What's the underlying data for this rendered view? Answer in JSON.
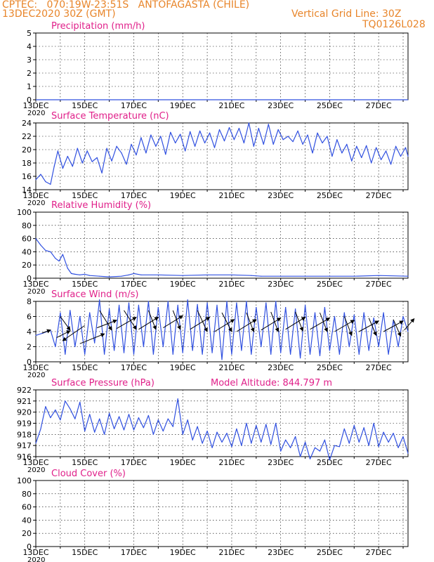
{
  "header": {
    "line1_left": "CPTEC:   070:19W-23:51S   ANTOFAGASTA (CHILE)",
    "line2_left": "13DEC2020 30Z (GMT)",
    "line1_right": "Vertical Grid Line: 30Z",
    "line2_right": "TQ0126L028",
    "accent_color": "#e8852a"
  },
  "chart_data": [
    {
      "type": "line",
      "title": "Precipitation (mm/h)",
      "ylim": [
        0,
        5
      ],
      "yticks": [
        "0",
        "1",
        "2",
        "3",
        "4",
        "5"
      ],
      "xticks": [
        "13DEC",
        "15DEC",
        "17DEC",
        "19DEC",
        "21DEC",
        "23DEC",
        "25DEC",
        "27DEC"
      ],
      "x_year_label": "2020",
      "series": [
        {
          "x": [
            13,
            28.2
          ],
          "values": [
            0,
            0
          ],
          "color": "#3050e0"
        }
      ]
    },
    {
      "type": "line",
      "title": "Surface Temperature (nC)",
      "ylim": [
        14,
        24
      ],
      "yticks": [
        "14",
        "16",
        "18",
        "20",
        "22",
        "24"
      ],
      "xticks": [
        "13DEC",
        "15DEC",
        "17DEC",
        "19DEC",
        "21DEC",
        "23DEC",
        "25DEC",
        "27DEC"
      ],
      "x_year_label": "2020",
      "series": [
        {
          "color": "#3050e0",
          "x": [
            13.0,
            13.2,
            13.4,
            13.6,
            13.75,
            13.9,
            14.1,
            14.3,
            14.5,
            14.7,
            14.9,
            15.1,
            15.3,
            15.5,
            15.7,
            15.9,
            16.1,
            16.3,
            16.5,
            16.7,
            16.9,
            17.1,
            17.3,
            17.5,
            17.7,
            17.9,
            18.1,
            18.3,
            18.5,
            18.7,
            18.9,
            19.1,
            19.3,
            19.5,
            19.7,
            19.9,
            20.1,
            20.3,
            20.5,
            20.7,
            20.9,
            21.1,
            21.3,
            21.5,
            21.7,
            21.9,
            22.1,
            22.3,
            22.5,
            22.7,
            22.9,
            23.1,
            23.3,
            23.5,
            23.7,
            23.9,
            24.1,
            24.3,
            24.5,
            24.7,
            24.9,
            25.1,
            25.3,
            25.5,
            25.7,
            25.9,
            26.1,
            26.3,
            26.5,
            26.7,
            26.9,
            27.1,
            27.3,
            27.5,
            27.7,
            27.9,
            28.1,
            28.2
          ],
          "values": [
            15.5,
            16.3,
            15.2,
            14.8,
            17.5,
            19.8,
            17.2,
            19.0,
            17.5,
            20.2,
            18.0,
            19.8,
            18.2,
            18.8,
            16.5,
            20.2,
            18.3,
            20.5,
            19.5,
            17.8,
            20.8,
            19.2,
            21.8,
            19.5,
            22.2,
            20.5,
            22.0,
            19.3,
            22.6,
            21.0,
            22.3,
            19.8,
            22.7,
            20.5,
            22.8,
            21.0,
            22.5,
            20.3,
            23.0,
            21.3,
            23.3,
            21.5,
            23.2,
            21.0,
            24.0,
            20.5,
            23.2,
            20.8,
            23.8,
            20.8,
            23.0,
            21.5,
            22.0,
            21.2,
            22.8,
            20.8,
            22.2,
            19.5,
            22.5,
            21.0,
            22.0,
            19.0,
            21.5,
            19.5,
            20.8,
            18.3,
            20.5,
            18.8,
            20.6,
            18.0,
            20.3,
            18.5,
            19.8,
            17.8,
            20.5,
            19.0,
            20.3,
            19.0
          ]
        }
      ]
    },
    {
      "type": "area",
      "title": "Relative Humidity (%)",
      "ylim": [
        0,
        100
      ],
      "yticks": [
        "0",
        "20",
        "40",
        "60",
        "80",
        "100"
      ],
      "xticks": [
        "13DEC",
        "15DEC",
        "17DEC",
        "19DEC",
        "21DEC",
        "23DEC",
        "25DEC",
        "27DEC"
      ],
      "x_year_label": "2020",
      "series": [
        {
          "color": "#3050e0",
          "x": [
            13.0,
            13.2,
            13.4,
            13.6,
            13.8,
            13.95,
            14.1,
            14.3,
            14.45,
            14.6,
            14.8,
            15.0,
            15.2,
            15.6,
            16.0,
            16.5,
            16.8,
            17.0,
            17.3,
            18.0,
            19.0,
            20.0,
            21.0,
            21.8,
            22.2,
            23.0,
            24.0,
            25.0,
            26.0,
            27.0,
            28.2
          ],
          "values": [
            60,
            50,
            42,
            40,
            30,
            26,
            36,
            15,
            7,
            6,
            5,
            6,
            4,
            3,
            2,
            3,
            5,
            7,
            5,
            5,
            4,
            5,
            5,
            4,
            3,
            3,
            3,
            3,
            3,
            4,
            3
          ]
        }
      ]
    },
    {
      "type": "line",
      "title": "Surface Wind (m/s)",
      "ylim": [
        0,
        8
      ],
      "yticks": [
        "0",
        "2",
        "4",
        "6",
        "8"
      ],
      "xticks": [
        "13DEC",
        "15DEC",
        "17DEC",
        "19DEC",
        "21DEC",
        "23DEC",
        "25DEC",
        "27DEC"
      ],
      "x_year_label": "2020",
      "series": [
        {
          "color": "#3050e0",
          "x": [
            13.0,
            13.3,
            13.6,
            13.8,
            14.0,
            14.2,
            14.4,
            14.6,
            14.8,
            15.0,
            15.2,
            15.4,
            15.6,
            15.8,
            16.0,
            16.2,
            16.4,
            16.6,
            16.8,
            17.0,
            17.2,
            17.4,
            17.6,
            17.8,
            18.0,
            18.2,
            18.4,
            18.6,
            18.8,
            19.0,
            19.2,
            19.4,
            19.6,
            19.8,
            20.0,
            20.2,
            20.4,
            20.6,
            20.8,
            21.0,
            21.2,
            21.4,
            21.6,
            21.8,
            22.0,
            22.2,
            22.4,
            22.6,
            22.8,
            23.0,
            23.2,
            23.4,
            23.6,
            23.8,
            24.0,
            24.2,
            24.4,
            24.6,
            24.8,
            25.0,
            25.2,
            25.4,
            25.6,
            25.8,
            26.0,
            26.2,
            26.4,
            26.6,
            26.8,
            27.0,
            27.2,
            27.4,
            27.6,
            27.8,
            28.0,
            28.2
          ],
          "values": [
            3.5,
            3.8,
            4.2,
            2.0,
            6.5,
            1.0,
            6.8,
            2.0,
            6.0,
            1.0,
            6.5,
            2.5,
            8.2,
            1.0,
            7.0,
            1.5,
            7.5,
            1.2,
            7.8,
            1.0,
            7.5,
            2.0,
            8.0,
            1.0,
            7.2,
            2.0,
            8.0,
            1.0,
            7.5,
            1.2,
            8.2,
            1.5,
            7.6,
            1.0,
            7.8,
            1.2,
            7.5,
            0.3,
            8.0,
            1.0,
            7.8,
            1.5,
            8.0,
            1.0,
            7.2,
            2.0,
            7.8,
            1.0,
            8.0,
            1.2,
            7.2,
            1.0,
            7.0,
            0.5,
            7.5,
            1.0,
            6.5,
            0.8,
            7.2,
            1.5,
            6.0,
            1.0,
            6.5,
            2.0,
            6.2,
            1.0,
            6.5,
            1.5,
            5.8,
            2.0,
            6.5,
            1.0,
            5.5,
            2.0,
            6.0,
            4.0
          ]
        }
      ],
      "wind_arrow_color": "#000000",
      "wind_vectors": [
        {
          "x": 13.25,
          "y": 3.8,
          "dx": 0.35,
          "dy": 0.4
        },
        {
          "x": 13.85,
          "y": 3.2,
          "dx": 0.55,
          "dy": 0.9
        },
        {
          "x": 14.0,
          "y": 6.0,
          "dx": 0.4,
          "dy": -1.8
        },
        {
          "x": 14.8,
          "y": 2.4,
          "dx": 1.0,
          "dy": 1.3
        },
        {
          "x": 15.0,
          "y": 4.8,
          "dx": -0.9,
          "dy": -2.0
        },
        {
          "x": 15.5,
          "y": 4.5,
          "dx": 0.8,
          "dy": 1.0
        },
        {
          "x": 15.6,
          "y": 6.8,
          "dx": 0.5,
          "dy": -2.6
        },
        {
          "x": 16.3,
          "y": 4.4,
          "dx": 0.8,
          "dy": 1.5
        },
        {
          "x": 16.6,
          "y": 6.8,
          "dx": 0.5,
          "dy": -2.5
        },
        {
          "x": 17.2,
          "y": 4.3,
          "dx": 0.8,
          "dy": 1.6
        },
        {
          "x": 17.6,
          "y": 6.8,
          "dx": 0.3,
          "dy": -2.5
        },
        {
          "x": 18.2,
          "y": 4.5,
          "dx": 0.8,
          "dy": 1.6
        },
        {
          "x": 18.6,
          "y": 6.8,
          "dx": 0.3,
          "dy": -2.5
        },
        {
          "x": 19.3,
          "y": 4.3,
          "dx": 0.8,
          "dy": 1.6
        },
        {
          "x": 19.6,
          "y": 6.8,
          "dx": 0.4,
          "dy": -2.8
        },
        {
          "x": 20.3,
          "y": 4.0,
          "dx": 0.8,
          "dy": 1.6
        },
        {
          "x": 20.6,
          "y": 6.5,
          "dx": 0.4,
          "dy": -2.5
        },
        {
          "x": 21.2,
          "y": 4.0,
          "dx": 0.8,
          "dy": 1.6
        },
        {
          "x": 21.6,
          "y": 6.5,
          "dx": 0.3,
          "dy": -2.5
        },
        {
          "x": 22.2,
          "y": 4.2,
          "dx": 0.8,
          "dy": 1.6
        },
        {
          "x": 22.6,
          "y": 6.6,
          "dx": 0.3,
          "dy": -2.6
        },
        {
          "x": 23.2,
          "y": 4.3,
          "dx": 0.8,
          "dy": 1.6
        },
        {
          "x": 23.6,
          "y": 6.6,
          "dx": 0.3,
          "dy": -2.5
        },
        {
          "x": 24.2,
          "y": 4.3,
          "dx": 0.8,
          "dy": 1.5
        },
        {
          "x": 24.6,
          "y": 6.5,
          "dx": 0.3,
          "dy": -2.5
        },
        {
          "x": 25.2,
          "y": 4.0,
          "dx": 0.8,
          "dy": 1.5
        },
        {
          "x": 25.6,
          "y": 6.0,
          "dx": 0.3,
          "dy": -2.5
        },
        {
          "x": 26.2,
          "y": 4.0,
          "dx": 0.8,
          "dy": 1.4
        },
        {
          "x": 26.6,
          "y": 5.8,
          "dx": 0.3,
          "dy": -2.3
        },
        {
          "x": 27.2,
          "y": 4.0,
          "dx": 0.8,
          "dy": 1.4
        },
        {
          "x": 27.6,
          "y": 5.6,
          "dx": 0.3,
          "dy": -2.2
        },
        {
          "x": 28.05,
          "y": 4.2,
          "dx": 0.4,
          "dy": 1.5
        }
      ]
    },
    {
      "type": "line",
      "title": "Surface Pressure (hPa)",
      "subtitle": "Model Altitude: 844.797 m",
      "ylim": [
        916,
        922
      ],
      "yticks": [
        "916",
        "917",
        "918",
        "919",
        "920",
        "921",
        "922"
      ],
      "xticks": [
        "13DEC",
        "15DEC",
        "17DEC",
        "19DEC",
        "21DEC",
        "23DEC",
        "25DEC",
        "27DEC"
      ],
      "x_year_label": "2020",
      "series": [
        {
          "color": "#3050e0",
          "x": [
            13.0,
            13.2,
            13.4,
            13.6,
            13.8,
            14.0,
            14.2,
            14.4,
            14.6,
            14.8,
            15.0,
            15.2,
            15.4,
            15.6,
            15.8,
            16.0,
            16.2,
            16.4,
            16.6,
            16.8,
            17.0,
            17.2,
            17.4,
            17.6,
            17.8,
            18.0,
            18.2,
            18.4,
            18.6,
            18.8,
            19.0,
            19.2,
            19.4,
            19.6,
            19.8,
            20.0,
            20.2,
            20.4,
            20.6,
            20.8,
            21.0,
            21.2,
            21.4,
            21.6,
            21.8,
            22.0,
            22.2,
            22.4,
            22.6,
            22.8,
            23.0,
            23.2,
            23.4,
            23.6,
            23.8,
            24.0,
            24.2,
            24.4,
            24.6,
            24.8,
            25.0,
            25.2,
            25.4,
            25.6,
            25.8,
            26.0,
            26.2,
            26.4,
            26.6,
            26.8,
            27.0,
            27.2,
            27.4,
            27.6,
            27.8,
            28.0,
            28.2
          ],
          "values": [
            917.2,
            918.5,
            920.5,
            919.5,
            920.2,
            919.3,
            921.0,
            920.3,
            919.4,
            920.9,
            918.3,
            919.8,
            918.2,
            919.4,
            918.0,
            919.9,
            918.5,
            919.6,
            918.4,
            919.8,
            918.4,
            919.5,
            918.6,
            919.7,
            918.0,
            919.3,
            918.3,
            919.4,
            918.7,
            921.2,
            918.0,
            919.3,
            917.5,
            918.7,
            917.2,
            918.3,
            916.8,
            918.2,
            917.3,
            918.1,
            916.9,
            918.5,
            917.0,
            919.0,
            917.2,
            918.8,
            917.3,
            918.9,
            917.1,
            919.0,
            916.5,
            917.5,
            916.8,
            917.8,
            916.0,
            917.3,
            915.8,
            916.8,
            916.5,
            917.5,
            915.7,
            917.0,
            916.9,
            918.5,
            917.2,
            918.8,
            917.3,
            918.6,
            917.0,
            919.0,
            916.9,
            918.2,
            917.3,
            918.1,
            916.8,
            917.8,
            916.3
          ]
        }
      ]
    },
    {
      "type": "line",
      "title": "Cloud Cover (%)",
      "ylim": [
        0,
        100
      ],
      "yticks": [
        "0",
        "20",
        "40",
        "60",
        "80",
        "100"
      ],
      "xticks": [
        "13DEC",
        "15DEC",
        "17DEC",
        "19DEC",
        "21DEC",
        "23DEC",
        "25DEC",
        "27DEC"
      ],
      "x_year_label": "2020",
      "series": []
    }
  ],
  "colors": {
    "title": "#e0208a",
    "series": "#3050e0",
    "axis": "#000000",
    "grid": "#000000"
  }
}
